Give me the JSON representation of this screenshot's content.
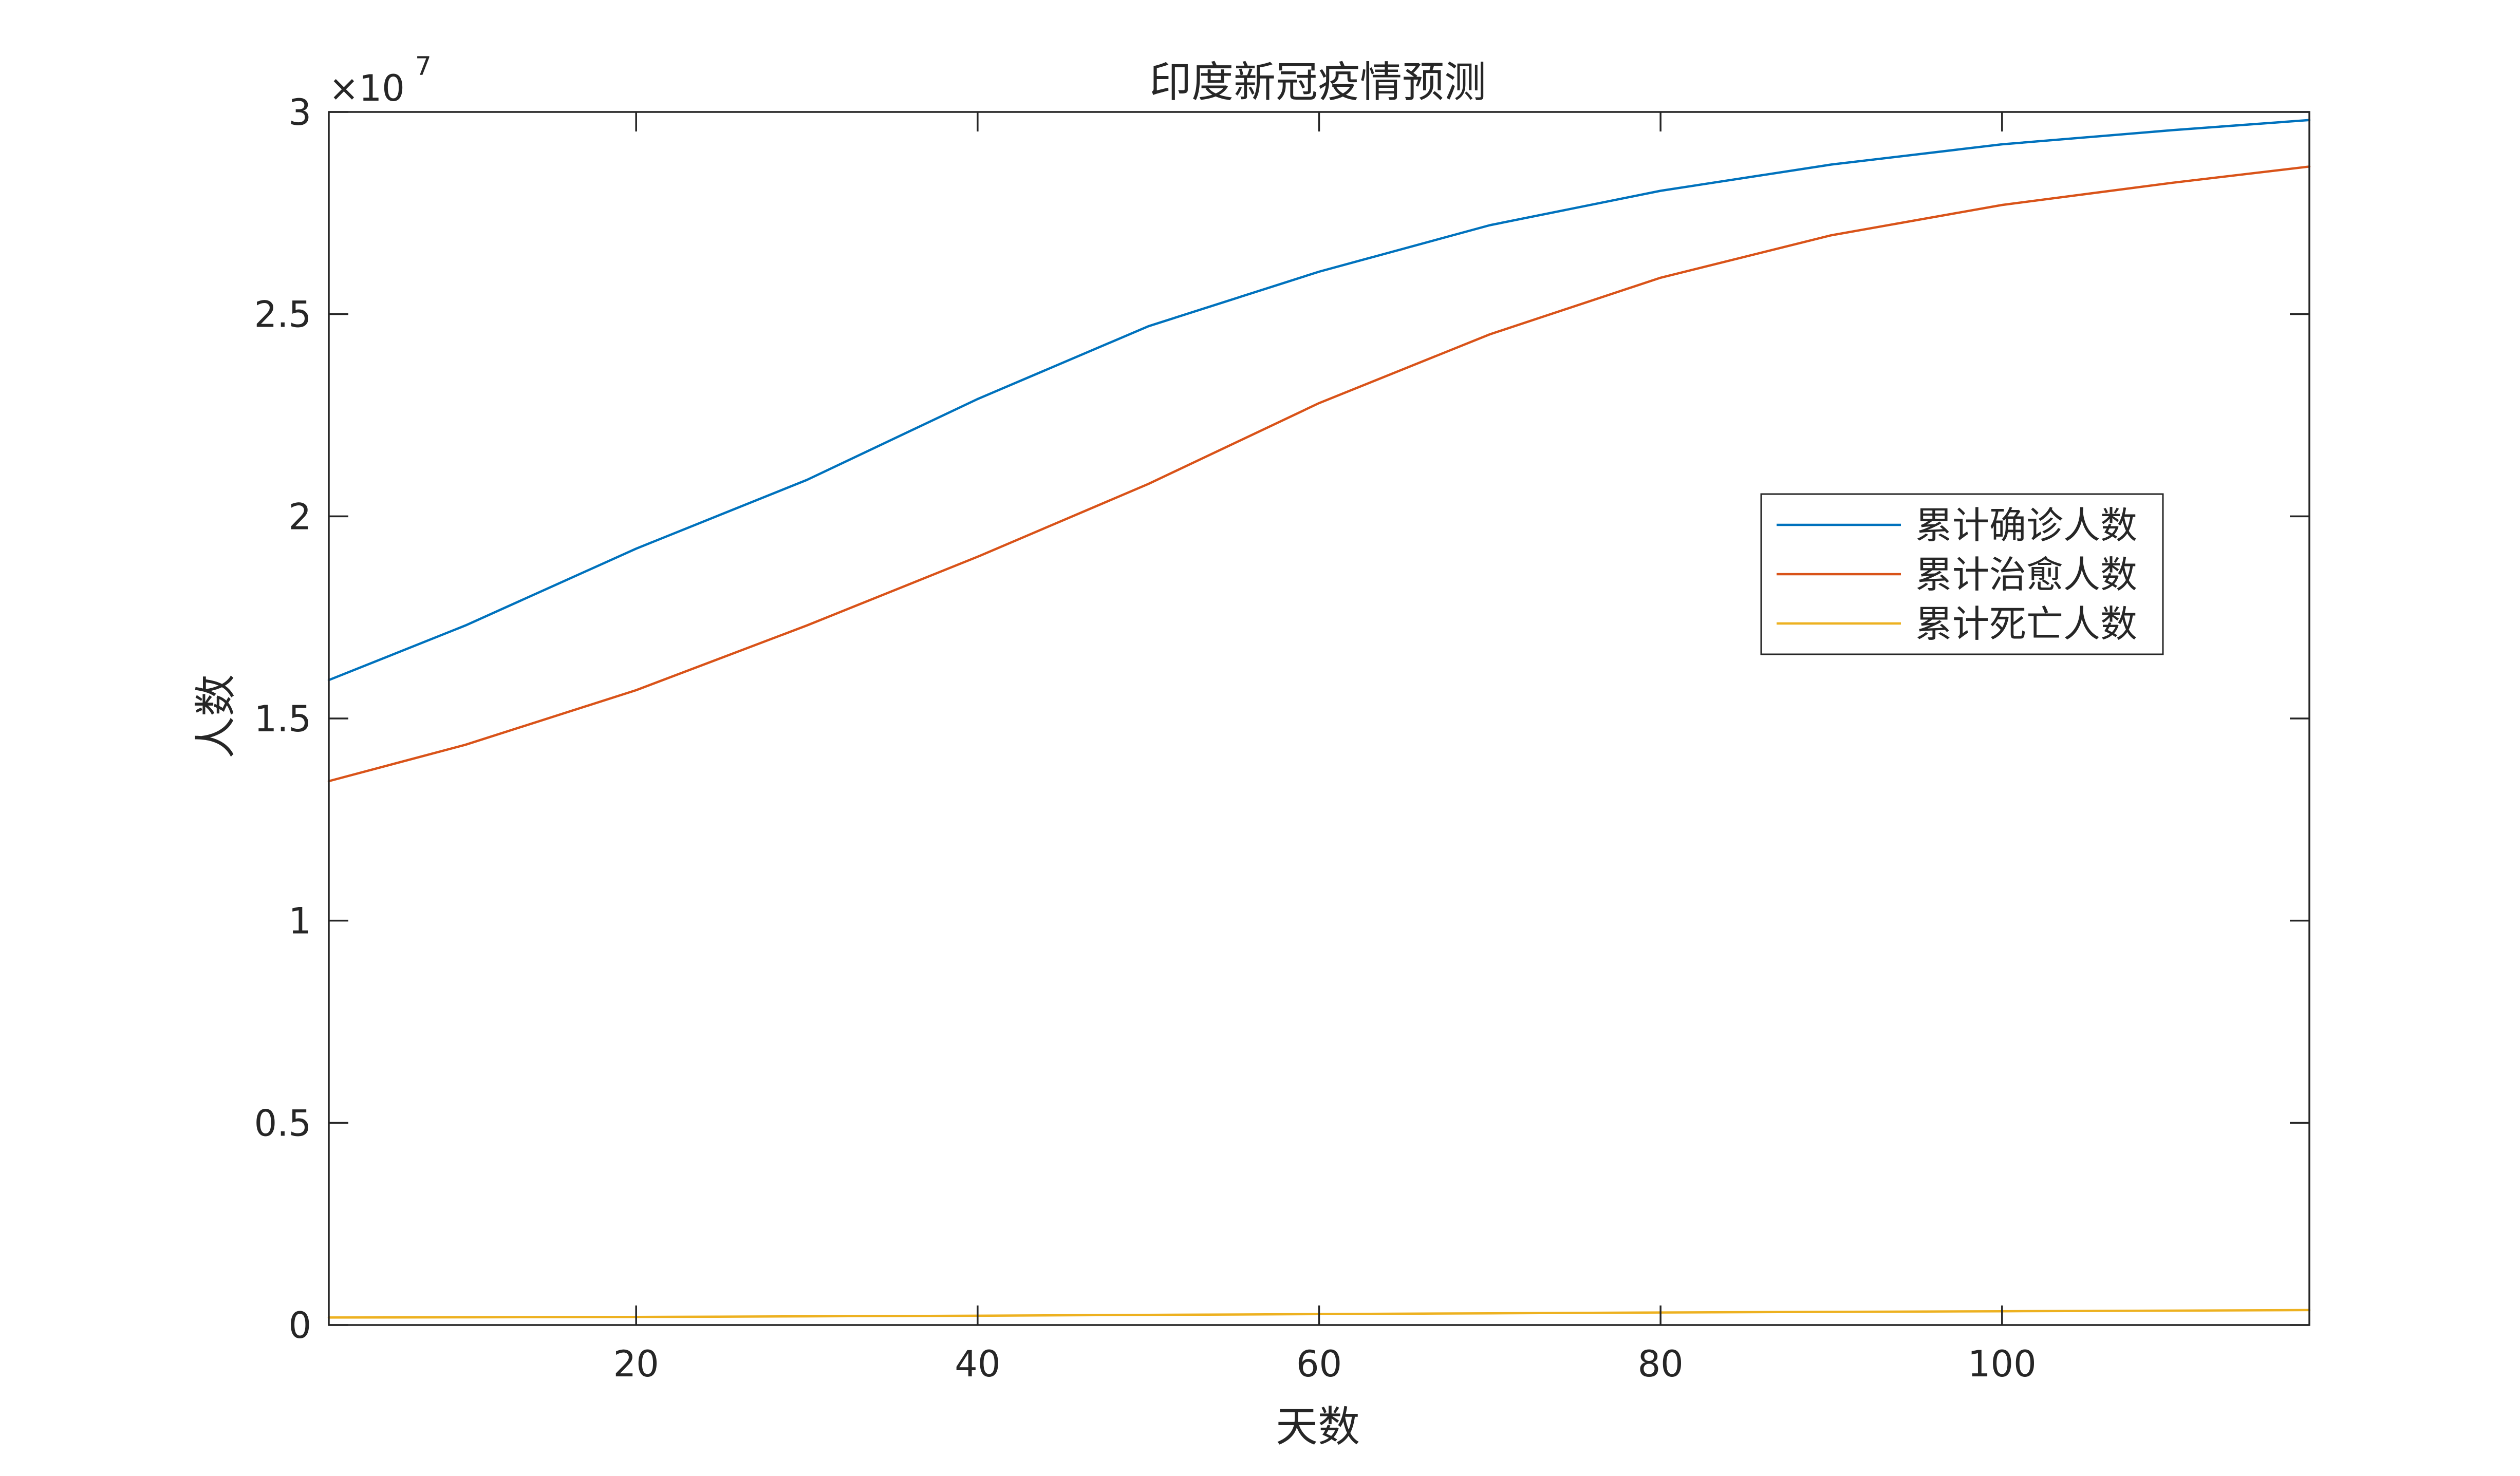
{
  "chart_data": {
    "type": "line",
    "title": "印度新冠疫情预测",
    "xlabel": "天数",
    "ylabel": "人数",
    "xlim": [
      2,
      118
    ],
    "ylim": [
      0,
      30000000
    ],
    "x_ticks": [
      20,
      40,
      60,
      80,
      100
    ],
    "y_ticks": [
      0,
      5000000,
      10000000,
      15000000,
      20000000,
      25000000,
      30000000
    ],
    "x_tick_labels": [
      "20",
      "40",
      "60",
      "80",
      "100"
    ],
    "y_tick_labels": [
      "0",
      "0.5",
      "1",
      "1.5",
      "2",
      "2.5",
      "3"
    ],
    "y_exponent_base": "×10",
    "y_exponent_power": "7",
    "grid": false,
    "legend_position": "right",
    "series": [
      {
        "name": "累计确诊人数",
        "color": "#0072BD",
        "x": [
          2,
          10,
          20,
          30,
          40,
          50,
          60,
          70,
          80,
          90,
          100,
          110,
          118
        ],
        "y": [
          15950000,
          17300000,
          19200000,
          20900000,
          22900000,
          24700000,
          26050000,
          27200000,
          28050000,
          28700000,
          29200000,
          29550000,
          29800000
        ]
      },
      {
        "name": "累计治愈人数",
        "color": "#D95319",
        "x": [
          2,
          10,
          20,
          30,
          40,
          50,
          60,
          70,
          80,
          90,
          100,
          110,
          118
        ],
        "y": [
          13450000,
          14350000,
          15700000,
          17300000,
          19000000,
          20800000,
          22800000,
          24500000,
          25900000,
          26950000,
          27700000,
          28250000,
          28650000
        ]
      },
      {
        "name": "累计死亡人数",
        "color": "#EDB120",
        "x": [
          2,
          10,
          20,
          30,
          40,
          50,
          60,
          70,
          80,
          90,
          100,
          110,
          118
        ],
        "y": [
          185000,
          190000,
          200000,
          215000,
          230000,
          250000,
          270000,
          290000,
          310000,
          325000,
          340000,
          355000,
          370000
        ]
      }
    ]
  }
}
